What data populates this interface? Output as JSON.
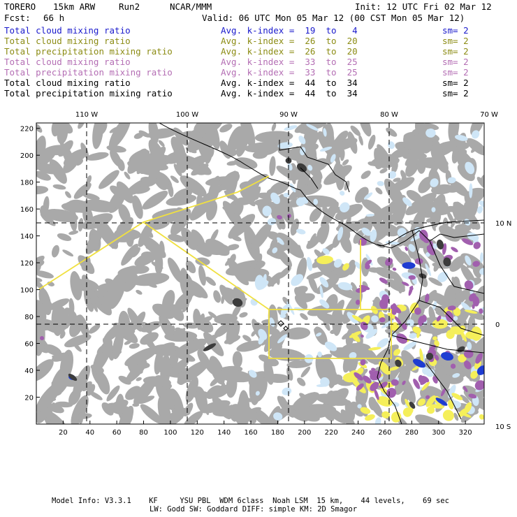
{
  "header": {
    "model": "TORERO",
    "resolution": "15km ARW",
    "run": "Run2",
    "org": "NCAR/MMM",
    "init": "Init: 12 UTC Fri 02 Mar 12",
    "fcst_label": "Fcst:",
    "fcst_value": "66 h",
    "valid": "Valid: 06 UTC Mon 05 Mar 12 (00 CST Mon 05 Mar 12)"
  },
  "legend_rows": [
    {
      "field": "Total cloud mixing ratio",
      "kindex": "Avg. k-index =  19  to   4",
      "sm": "sm= 2",
      "color": "#1a1acc"
    },
    {
      "field": "Total cloud mixing ratio",
      "kindex": "Avg. k-index =  26  to  20",
      "sm": "sm= 2",
      "color": "#8c8c14"
    },
    {
      "field": "Total precipitation mixing ratio",
      "kindex": "Avg. k-index =  26  to  20",
      "sm": "sm= 2",
      "color": "#8c8c14"
    },
    {
      "field": "Total cloud mixing ratio",
      "kindex": "Avg. k-index =  33  to  25",
      "sm": "sm= 2",
      "color": "#b46eb4"
    },
    {
      "field": "Total precipitation mixing ratio",
      "kindex": "Avg. k-index =  33  to  25",
      "sm": "sm= 2",
      "color": "#b46eb4"
    },
    {
      "field": "Total cloud mixing ratio",
      "kindex": "Avg. k-index =  44  to  34",
      "sm": "sm= 2",
      "color": "#000000"
    },
    {
      "field": "Total precipitation mixing ratio",
      "kindex": "Avg. k-index =  44  to  34",
      "sm": "sm= 2",
      "color": "#000000"
    }
  ],
  "map": {
    "lon_labels": [
      "110 W",
      "100 W",
      "90 W",
      "80 W",
      "70 W"
    ],
    "lat_labels": [
      "10 N",
      "0",
      "10 S"
    ],
    "y_ticks": [
      "220",
      "200",
      "180",
      "160",
      "140",
      "120",
      "100",
      "80",
      "60",
      "40",
      "20"
    ],
    "x_ticks": [
      "20",
      "40",
      "60",
      "80",
      "100",
      "120",
      "140",
      "160",
      "180",
      "200",
      "220",
      "240",
      "260",
      "280",
      "300",
      "320"
    ],
    "colors": {
      "cloud_gray": "#a9a9a9",
      "dark_core": "#3c3c3c",
      "light_blue": "#cfe6f7",
      "blue": "#1e3cd2",
      "yellow": "#f5ef5a",
      "purple": "#a15fae",
      "outline": "#f0e040",
      "coast": "#000000"
    }
  },
  "footer": {
    "line1": "Model Info: V3.3.1    KF     YSU PBL  WDM 6class  Noah LSM  15 km,    44 levels,    69 sec",
    "line2": "LW: Godd SW: Goddard DIFF: simple KM: 2D Smagor"
  }
}
